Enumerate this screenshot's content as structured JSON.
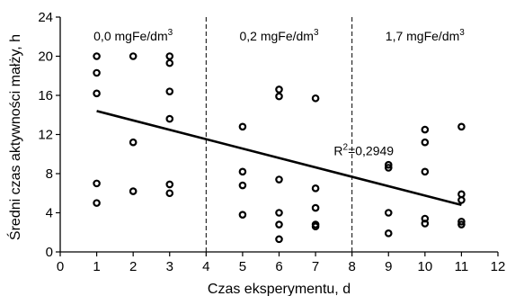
{
  "chart_data": {
    "type": "scatter",
    "xlabel": "Czas eksperymentu, d",
    "ylabel": "Średni czas aktywności małży, h",
    "xlim": [
      0,
      12
    ],
    "ylim": [
      0,
      24
    ],
    "xticks": [
      0,
      1,
      2,
      3,
      4,
      5,
      6,
      7,
      8,
      9,
      10,
      11,
      12
    ],
    "yticks": [
      0,
      4,
      8,
      12,
      16,
      20,
      24
    ],
    "grid": false,
    "regions": [
      {
        "label_main": "0,0 mgFe/dm",
        "label_sup": "3",
        "x_start": 0,
        "x_end": 4
      },
      {
        "label_main": "0,2 mgFe/dm",
        "label_sup": "3",
        "x_start": 4,
        "x_end": 8
      },
      {
        "label_main": "1,7 mgFe/dm",
        "label_sup": "3",
        "x_start": 8,
        "x_end": 12
      }
    ],
    "dividers_x": [
      4,
      8
    ],
    "points": [
      {
        "x": 1,
        "y": 20.0
      },
      {
        "x": 1,
        "y": 18.3
      },
      {
        "x": 1,
        "y": 16.2
      },
      {
        "x": 1,
        "y": 7.0
      },
      {
        "x": 1,
        "y": 5.0
      },
      {
        "x": 2,
        "y": 20.0
      },
      {
        "x": 2,
        "y": 11.2
      },
      {
        "x": 2,
        "y": 6.2
      },
      {
        "x": 3,
        "y": 20.0
      },
      {
        "x": 3,
        "y": 19.3
      },
      {
        "x": 3,
        "y": 16.4
      },
      {
        "x": 3,
        "y": 13.6
      },
      {
        "x": 3,
        "y": 6.9
      },
      {
        "x": 3,
        "y": 6.0
      },
      {
        "x": 5,
        "y": 12.8
      },
      {
        "x": 5,
        "y": 8.2
      },
      {
        "x": 5,
        "y": 6.8
      },
      {
        "x": 5,
        "y": 3.8
      },
      {
        "x": 6,
        "y": 16.6
      },
      {
        "x": 6,
        "y": 15.9
      },
      {
        "x": 6,
        "y": 7.4
      },
      {
        "x": 6,
        "y": 4.0
      },
      {
        "x": 6,
        "y": 2.8
      },
      {
        "x": 6,
        "y": 1.3
      },
      {
        "x": 7,
        "y": 15.7
      },
      {
        "x": 7,
        "y": 6.5
      },
      {
        "x": 7,
        "y": 4.5
      },
      {
        "x": 7,
        "y": 2.8
      },
      {
        "x": 7,
        "y": 2.6
      },
      {
        "x": 9,
        "y": 8.9
      },
      {
        "x": 9,
        "y": 8.6
      },
      {
        "x": 9,
        "y": 4.0
      },
      {
        "x": 9,
        "y": 1.9
      },
      {
        "x": 10,
        "y": 12.5
      },
      {
        "x": 10,
        "y": 11.2
      },
      {
        "x": 10,
        "y": 8.2
      },
      {
        "x": 10,
        "y": 3.4
      },
      {
        "x": 10,
        "y": 2.9
      },
      {
        "x": 11,
        "y": 12.8
      },
      {
        "x": 11,
        "y": 5.9
      },
      {
        "x": 11,
        "y": 5.3
      },
      {
        "x": 11,
        "y": 3.1
      },
      {
        "x": 11,
        "y": 2.8
      }
    ],
    "trendline": {
      "x1": 1,
      "y1": 14.4,
      "x2": 11,
      "y2": 4.8
    },
    "annotation": {
      "label_main": "R",
      "label_sup": "2",
      "label_rest": "=0,2949",
      "x": 7.5,
      "y": 9.9
    }
  }
}
